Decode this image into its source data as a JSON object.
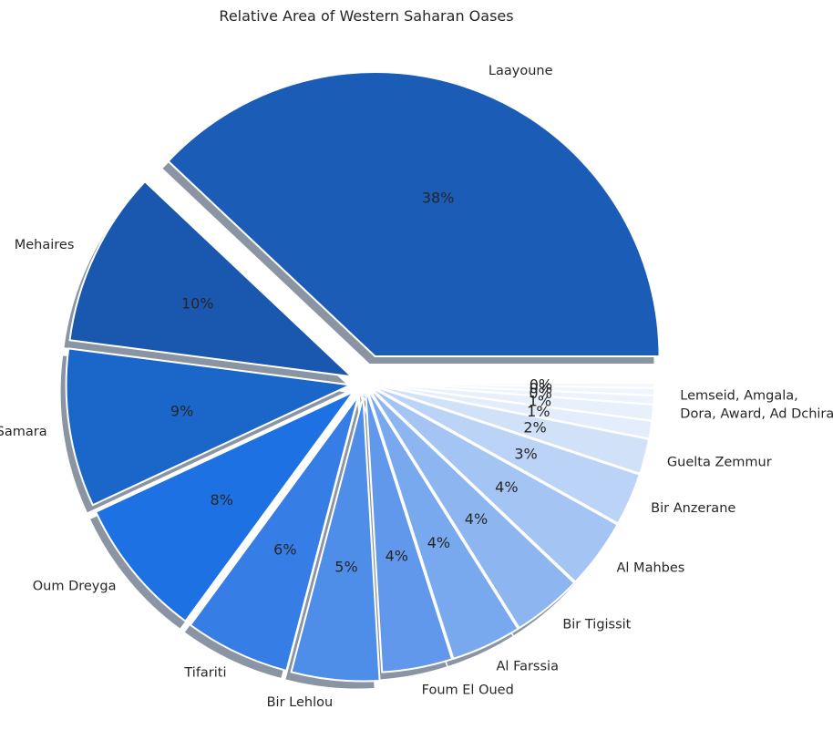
{
  "chart_data": {
    "type": "pie",
    "title": "Relative Area of Western Saharan Oases",
    "start_angle_deg": 0,
    "direction": "counterclockwise",
    "shadow": true,
    "slices": [
      {
        "label": "Laayoune",
        "value": 38.0,
        "pct_label": "38%",
        "color": "#1b5cb6"
      },
      {
        "label": "Mehaires",
        "value": 10.0,
        "pct_label": "10%",
        "color": "#1a57af"
      },
      {
        "label": "Samara",
        "value": 9.0,
        "pct_label": "9%",
        "color": "#1a66c9"
      },
      {
        "label": "Oum Dreyga",
        "value": 8.0,
        "pct_label": "8%",
        "color": "#1d71e2"
      },
      {
        "label": "Tifariti",
        "value": 6.0,
        "pct_label": "6%",
        "color": "#367de6"
      },
      {
        "label": "Bir Lehlou",
        "value": 5.0,
        "pct_label": "5%",
        "color": "#4e8ee9"
      },
      {
        "label": "Foum El Oued",
        "value": 4.0,
        "pct_label": "4%",
        "color": "#6198eb"
      },
      {
        "label": "Al Farssia",
        "value": 4.0,
        "pct_label": "4%",
        "color": "#78a8ee"
      },
      {
        "label": "Bir Tigissit",
        "value": 4.0,
        "pct_label": "4%",
        "color": "#8db6f0"
      },
      {
        "label": "Al Mahbes",
        "value": 4.0,
        "pct_label": "4%",
        "color": "#a4c4f3"
      },
      {
        "label": "Bir Anzerane",
        "value": 3.0,
        "pct_label": "3%",
        "color": "#bbd3f6"
      },
      {
        "label": "Guelta Zemmur",
        "value": 2.0,
        "pct_label": "2%",
        "color": "#d0e1f8"
      },
      {
        "label": "Lemseid",
        "value": 1.0,
        "pct_label": "1%",
        "color": "#e3edfb"
      },
      {
        "label": "Amgala",
        "value": 0.9,
        "pct_label": "1%",
        "color": "#e8f0fb"
      },
      {
        "label": "Dora",
        "value": 0.5,
        "pct_label": "0%",
        "color": "#ecf3fc"
      },
      {
        "label": "Award",
        "value": 0.4,
        "pct_label": "0%",
        "color": "#f0f5fd"
      },
      {
        "label": "Ad Dchira",
        "value": 0.3,
        "pct_label": "0%",
        "color": "#f4f8fd"
      }
    ],
    "outer_labels": [
      {
        "text": "Laayoune"
      },
      {
        "text": "Mehaires"
      },
      {
        "text": "Samara"
      },
      {
        "text": "Oum Dreyga"
      },
      {
        "text": "Tifariti"
      },
      {
        "text": "Bir Lehlou"
      },
      {
        "text": "Foum El Oued"
      },
      {
        "text": "Al Farssia"
      },
      {
        "text": "Bir Tigissit"
      },
      {
        "text": "Al Mahbes"
      },
      {
        "text": "Bir Anzerane"
      },
      {
        "text": "Guelta Zemmur"
      },
      {
        "text": "Lemseid, Amgala,"
      },
      {
        "text": "Dora, Award, Ad Dchira"
      }
    ]
  }
}
